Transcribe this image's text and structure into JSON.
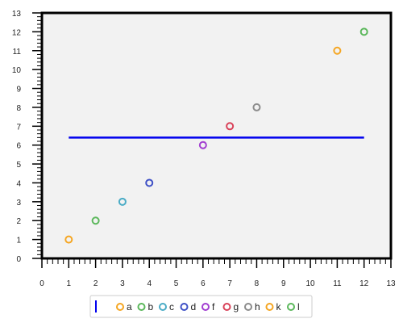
{
  "chart_data": {
    "type": "scatter",
    "title": "",
    "xlabel": "",
    "ylabel": "",
    "xlim": [
      0,
      13
    ],
    "ylim": [
      0,
      13
    ],
    "x_ticks": [
      "0",
      "1",
      "2",
      "3",
      "4",
      "5",
      "6",
      "7",
      "8",
      "9",
      "10",
      "11",
      "12",
      "13"
    ],
    "y_ticks": [
      "0",
      "1",
      "2",
      "3",
      "4",
      "5",
      "6",
      "7",
      "8",
      "9",
      "10",
      "11",
      "12",
      "13"
    ],
    "grid": false,
    "plot_background": "#f2f2f2",
    "legend_position": "bottom-center",
    "series": [
      {
        "name": "a",
        "color": "#f5a623",
        "points": [
          [
            1,
            1
          ]
        ]
      },
      {
        "name": "b",
        "color": "#5cb85c",
        "points": [
          [
            2,
            2
          ]
        ]
      },
      {
        "name": "c",
        "color": "#4bacc6",
        "points": [
          [
            3,
            3
          ]
        ]
      },
      {
        "name": "d",
        "color": "#3f51c6",
        "points": [
          [
            4,
            4
          ]
        ]
      },
      {
        "name": "f",
        "color": "#a23fd1",
        "points": [
          [
            6,
            6
          ]
        ]
      },
      {
        "name": "g",
        "color": "#d9435a",
        "points": [
          [
            7,
            7
          ]
        ]
      },
      {
        "name": "h",
        "color": "#8c8c8c",
        "points": [
          [
            8,
            8
          ]
        ]
      },
      {
        "name": "k",
        "color": "#f5a623",
        "points": [
          [
            11,
            11
          ]
        ]
      },
      {
        "name": "l",
        "color": "#5cb85c",
        "points": [
          [
            12,
            12
          ]
        ]
      }
    ],
    "reference_line": {
      "type": "horizontal",
      "y": 6.4,
      "x_from": 1,
      "x_to": 12,
      "color": "#0000ee"
    }
  }
}
